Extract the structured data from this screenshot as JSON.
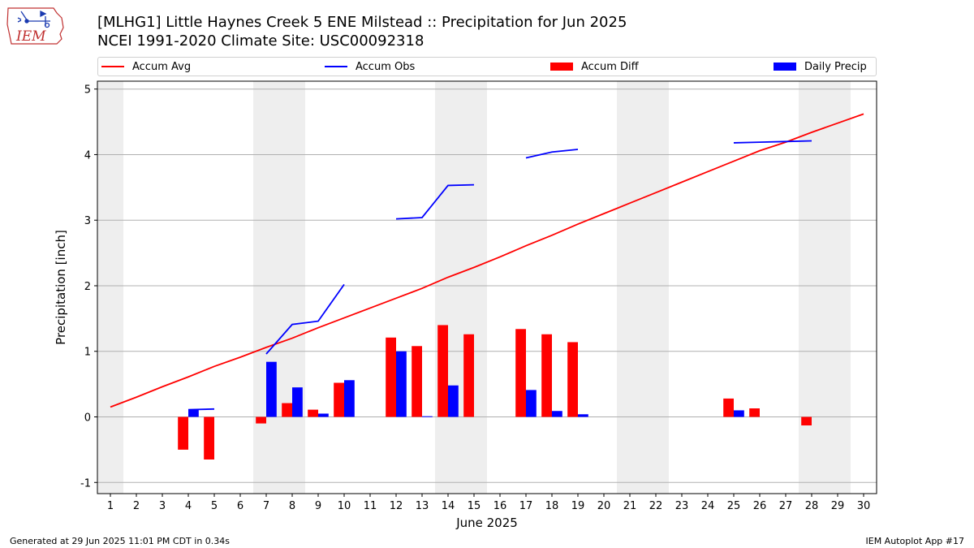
{
  "logo": {
    "text": "IEM",
    "name": "iem-logo"
  },
  "header": {
    "title_line1": "[MLHG1] Little Haynes Creek 5 ENE Milstead :: Precipitation for Jun 2025",
    "title_line2": "NCEI 1991-2020 Climate Site: USC00092318"
  },
  "legend": [
    {
      "label": "Accum Avg",
      "kind": "line",
      "color": "#ff0000"
    },
    {
      "label": "Accum Obs",
      "kind": "line",
      "color": "#0000ff"
    },
    {
      "label": "Accum Diff",
      "kind": "box",
      "color": "#ff0000"
    },
    {
      "label": "Daily Precip",
      "kind": "box",
      "color": "#0000ff"
    }
  ],
  "chart_data": {
    "type": "bar",
    "xlabel": "June 2025",
    "ylabel": "Precipitation [inch]",
    "x": [
      1,
      2,
      3,
      4,
      5,
      6,
      7,
      8,
      9,
      10,
      11,
      12,
      13,
      14,
      15,
      16,
      17,
      18,
      19,
      20,
      21,
      22,
      23,
      24,
      25,
      26,
      27,
      28,
      29,
      30
    ],
    "xlim": [
      0.5,
      30.5
    ],
    "ylim": [
      -1.17,
      5.12
    ],
    "yticks": [
      -1,
      0,
      1,
      2,
      3,
      4,
      5
    ],
    "grid": "horizontal",
    "weekend_shading": [
      1,
      7,
      8,
      14,
      15,
      21,
      22,
      28,
      29
    ],
    "series": [
      {
        "name": "Accum Avg",
        "kind": "line",
        "color": "#ff0000",
        "values": [
          0.15,
          0.3,
          0.46,
          0.61,
          0.77,
          0.91,
          1.06,
          1.2,
          1.36,
          1.51,
          1.66,
          1.81,
          1.96,
          2.13,
          2.28,
          2.44,
          2.61,
          2.77,
          2.94,
          3.1,
          3.26,
          3.42,
          3.58,
          3.74,
          3.9,
          4.06,
          4.19,
          4.34,
          4.48,
          4.62
        ]
      },
      {
        "name": "Accum Obs",
        "kind": "line",
        "color": "#0000ff",
        "values": [
          null,
          null,
          null,
          0.11,
          0.12,
          null,
          0.96,
          1.41,
          1.46,
          2.02,
          null,
          3.02,
          3.04,
          3.53,
          3.54,
          null,
          3.95,
          4.04,
          4.08,
          null,
          null,
          null,
          null,
          null,
          4.18,
          4.19,
          4.2,
          4.21,
          null,
          null
        ]
      },
      {
        "name": "Accum Diff",
        "kind": "bar",
        "color": "#ff0000",
        "values": [
          null,
          null,
          null,
          -0.5,
          -0.65,
          null,
          -0.1,
          0.21,
          0.11,
          0.52,
          null,
          1.21,
          1.08,
          1.4,
          1.26,
          null,
          1.34,
          1.26,
          1.14,
          null,
          null,
          null,
          null,
          null,
          0.28,
          0.13,
          null,
          -0.13,
          null,
          null
        ]
      },
      {
        "name": "Daily Precip",
        "kind": "bar",
        "color": "#0000ff",
        "values": [
          null,
          null,
          null,
          0.11,
          null,
          null,
          0.84,
          0.45,
          0.05,
          0.56,
          null,
          1.0,
          0.01,
          0.48,
          null,
          null,
          0.41,
          0.09,
          0.04,
          null,
          null,
          null,
          null,
          null,
          0.1,
          null,
          null,
          null,
          null,
          null
        ]
      }
    ]
  },
  "footer": {
    "left": "Generated at 29 Jun 2025 11:01 PM CDT in 0.34s",
    "right": "IEM Autoplot App #17"
  }
}
